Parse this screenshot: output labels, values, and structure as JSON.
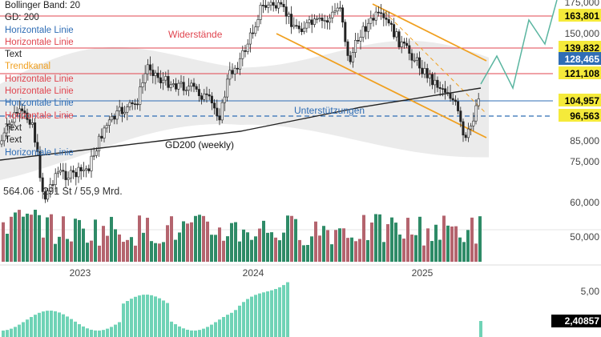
{
  "legend": {
    "items": [
      {
        "label": "Bollinger Band: 20",
        "color": "#222222"
      },
      {
        "label": "GD: 200",
        "color": "#222222"
      },
      {
        "label": "Horizontale Linie",
        "color": "#2f6db5"
      },
      {
        "label": "Horizontale Linie",
        "color": "#e0454f"
      },
      {
        "label": "Text",
        "color": "#222222"
      },
      {
        "label": "Trendkanal",
        "color": "#f0a020"
      },
      {
        "label": "Horizontale Linie",
        "color": "#e0454f"
      },
      {
        "label": "Horizontale Linie",
        "color": "#e0454f"
      },
      {
        "label": "Horizontale Linie",
        "color": "#2f6db5"
      },
      {
        "label": "Horizontale Linie",
        "color": "#e0454f"
      },
      {
        "label": "Text",
        "color": "#222222"
      },
      {
        "label": "Text",
        "color": "#222222"
      },
      {
        "label": "Horizontale Linie",
        "color": "#2f6db5"
      }
    ]
  },
  "info_line": "564.06 · 291 St / 55,9 Mrd.",
  "colors": {
    "up": "#2e8b67",
    "down": "#b4646e",
    "resistance": "#e0454f",
    "support": "#2f6db5",
    "channel": "#f0a020",
    "gd200": "#222222",
    "band": "#e6e6e6",
    "badge": "#f5ea3a",
    "histogram": "#6fd3b6"
  },
  "chart_data": {
    "type": "candlestick",
    "x_ticks": [
      "2023",
      "2024",
      "2025"
    ],
    "y_ticks": [
      "175,000",
      "150,000",
      "85,000",
      "75,000",
      "60,000",
      "50,000"
    ],
    "price_labels": [
      "163,801",
      "139,832",
      "128,465",
      "121,108",
      "104,957",
      "96,563"
    ],
    "annotations": [
      "Widerstände",
      "Unterstützungen",
      "GD200 (weekly)"
    ],
    "lower_panel": {
      "y_tick": "5,00",
      "value_label": "2,40857"
    }
  }
}
